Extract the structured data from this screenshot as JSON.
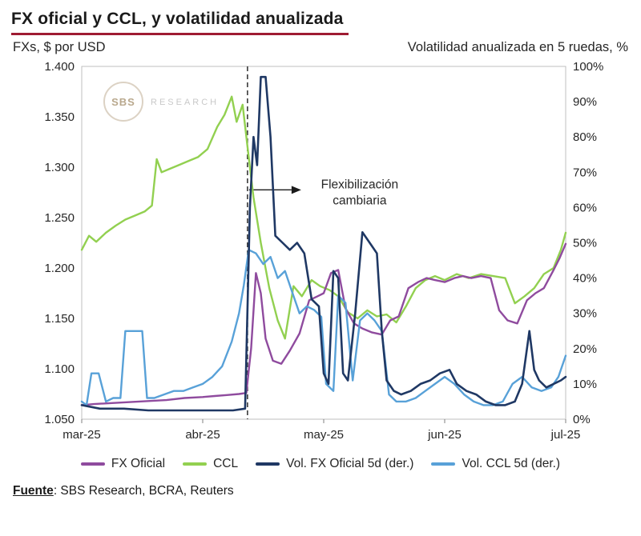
{
  "title": "FX oficial y CCL, y volatilidad anualizada",
  "subtitle_left": "FXs, $ por USD",
  "subtitle_right": "Volatilidad anualizada en 5 ruedas, %",
  "watermark": {
    "circle_text": "SBS",
    "side_text": "RESEARCH"
  },
  "annotation": {
    "line1": "Flexibilización",
    "line2": "cambiaria"
  },
  "footer": {
    "source_label": "Fuente",
    "source_rest": ": SBS Research, BCRA, Reuters"
  },
  "colors": {
    "title_rule": "#9E1B32",
    "plot_border": "#BFBFBF",
    "axis_text": "#262626",
    "event_line": "#3a3a3a"
  },
  "chart_data": {
    "type": "line",
    "title": "FX oficial y CCL, y volatilidad anualizada",
    "x_axis": {
      "unit": "months since mar-25",
      "range": [
        0,
        4
      ],
      "tick_positions": [
        0,
        1,
        2,
        3,
        4
      ],
      "tick_labels": [
        "mar-25",
        "abr-25",
        "may-25",
        "jun-25",
        "jul-25"
      ]
    },
    "y_left": {
      "label": "FXs, $ por USD",
      "range": [
        1.05,
        1.4
      ],
      "ticks": [
        "1.050",
        "1.100",
        "1.150",
        "1.200",
        "1.250",
        "1.300",
        "1.350",
        "1.400"
      ]
    },
    "y_right": {
      "label": "Volatilidad anualizada en 5 ruedas, %",
      "range": [
        0,
        100
      ],
      "ticks": [
        "0%",
        "10%",
        "20%",
        "30%",
        "40%",
        "50%",
        "60%",
        "70%",
        "80%",
        "90%",
        "100%"
      ]
    },
    "event_line": {
      "x": 1.37,
      "style": "dashed",
      "label": "Flexibilización cambiaria",
      "annotation_y_right_pct": 65
    },
    "legend_position": "bottom",
    "grid": false,
    "series": [
      {
        "name": "FX Oficial",
        "axis": "left",
        "color": "#8F4B9E",
        "width": 2.4,
        "x": [
          0,
          0.1,
          0.25,
          0.4,
          0.55,
          0.7,
          0.85,
          1.0,
          1.1,
          1.2,
          1.3,
          1.36,
          1.4,
          1.44,
          1.48,
          1.52,
          1.58,
          1.65,
          1.72,
          1.8,
          1.88,
          1.95,
          2.0,
          2.06,
          2.12,
          2.18,
          2.25,
          2.32,
          2.4,
          2.48,
          2.55,
          2.62,
          2.7,
          2.78,
          2.85,
          2.92,
          3.0,
          3.08,
          3.15,
          3.22,
          3.3,
          3.38,
          3.45,
          3.52,
          3.6,
          3.68,
          3.75,
          3.82,
          3.9,
          3.95,
          4.0
        ],
        "y": [
          1.064,
          1.065,
          1.066,
          1.067,
          1.068,
          1.069,
          1.071,
          1.072,
          1.073,
          1.074,
          1.075,
          1.076,
          1.12,
          1.195,
          1.175,
          1.13,
          1.108,
          1.105,
          1.118,
          1.135,
          1.168,
          1.172,
          1.175,
          1.195,
          1.198,
          1.16,
          1.145,
          1.14,
          1.136,
          1.134,
          1.148,
          1.152,
          1.18,
          1.186,
          1.19,
          1.188,
          1.186,
          1.19,
          1.192,
          1.19,
          1.192,
          1.19,
          1.158,
          1.148,
          1.145,
          1.168,
          1.175,
          1.18,
          1.198,
          1.21,
          1.224
        ]
      },
      {
        "name": "CCL",
        "axis": "left",
        "color": "#92D050",
        "width": 2.4,
        "x": [
          0,
          0.06,
          0.12,
          0.2,
          0.28,
          0.36,
          0.44,
          0.52,
          0.58,
          0.62,
          0.66,
          0.72,
          0.8,
          0.88,
          0.96,
          1.04,
          1.12,
          1.18,
          1.24,
          1.28,
          1.33,
          1.38,
          1.42,
          1.48,
          1.55,
          1.62,
          1.68,
          1.75,
          1.82,
          1.9,
          1.97,
          2.05,
          2.12,
          2.2,
          2.28,
          2.36,
          2.44,
          2.52,
          2.6,
          2.68,
          2.76,
          2.84,
          2.92,
          3.0,
          3.1,
          3.2,
          3.3,
          3.4,
          3.5,
          3.58,
          3.66,
          3.74,
          3.82,
          3.9,
          3.96,
          4.0
        ],
        "y": [
          1.218,
          1.232,
          1.226,
          1.235,
          1.242,
          1.248,
          1.252,
          1.256,
          1.262,
          1.308,
          1.295,
          1.298,
          1.302,
          1.306,
          1.31,
          1.318,
          1.34,
          1.352,
          1.37,
          1.345,
          1.362,
          1.31,
          1.27,
          1.225,
          1.18,
          1.148,
          1.13,
          1.182,
          1.172,
          1.188,
          1.182,
          1.178,
          1.172,
          1.156,
          1.15,
          1.158,
          1.152,
          1.154,
          1.146,
          1.162,
          1.18,
          1.188,
          1.192,
          1.188,
          1.194,
          1.19,
          1.194,
          1.192,
          1.19,
          1.165,
          1.172,
          1.18,
          1.194,
          1.2,
          1.218,
          1.235
        ]
      },
      {
        "name": "Vol. FX Oficial 5d (der.)",
        "axis": "right",
        "color": "#1F3864",
        "width": 2.6,
        "x": [
          0,
          0.15,
          0.35,
          0.55,
          0.75,
          0.95,
          1.1,
          1.25,
          1.35,
          1.39,
          1.42,
          1.45,
          1.48,
          1.52,
          1.56,
          1.6,
          1.66,
          1.72,
          1.78,
          1.84,
          1.9,
          1.96,
          2.0,
          2.04,
          2.08,
          2.12,
          2.16,
          2.2,
          2.26,
          2.32,
          2.36,
          2.4,
          2.44,
          2.48,
          2.52,
          2.58,
          2.64,
          2.72,
          2.8,
          2.88,
          2.96,
          3.04,
          3.1,
          3.18,
          3.26,
          3.34,
          3.42,
          3.5,
          3.58,
          3.64,
          3.7,
          3.74,
          3.78,
          3.84,
          3.9,
          3.96,
          4.0
        ],
        "y": [
          4,
          3,
          3,
          2.5,
          2.5,
          2.5,
          2.5,
          2.5,
          3,
          60,
          80,
          72,
          97,
          97,
          80,
          52,
          50,
          48,
          50,
          47,
          34,
          32,
          13,
          10,
          42,
          40,
          13,
          11,
          30,
          53,
          51,
          49,
          47,
          25,
          11,
          8,
          7,
          8,
          10,
          11,
          13,
          14,
          10,
          8,
          7,
          5,
          4,
          4,
          5,
          10,
          25,
          14,
          11,
          9,
          10,
          11,
          12
        ]
      },
      {
        "name": "Vol. CCL 5d (der.)",
        "axis": "right",
        "color": "#58A1D8",
        "width": 2.4,
        "x": [
          0,
          0.04,
          0.08,
          0.14,
          0.2,
          0.26,
          0.32,
          0.36,
          0.42,
          0.5,
          0.54,
          0.6,
          0.68,
          0.76,
          0.84,
          0.92,
          1.0,
          1.08,
          1.16,
          1.24,
          1.3,
          1.34,
          1.38,
          1.44,
          1.5,
          1.56,
          1.62,
          1.68,
          1.74,
          1.8,
          1.86,
          1.92,
          1.98,
          2.02,
          2.08,
          2.12,
          2.18,
          2.24,
          2.3,
          2.36,
          2.42,
          2.48,
          2.54,
          2.6,
          2.68,
          2.76,
          2.84,
          2.92,
          3.0,
          3.08,
          3.16,
          3.24,
          3.32,
          3.4,
          3.48,
          3.56,
          3.64,
          3.72,
          3.8,
          3.88,
          3.94,
          4.0
        ],
        "y": [
          5,
          4,
          13,
          13,
          5,
          6,
          6,
          25,
          25,
          25,
          6,
          6,
          7,
          8,
          8,
          9,
          10,
          12,
          15,
          22,
          30,
          38,
          48,
          47,
          44,
          46,
          40,
          42,
          36,
          30,
          32,
          31,
          29,
          10,
          8,
          35,
          33,
          11,
          28,
          30,
          28,
          25,
          7,
          5,
          5,
          6,
          8,
          10,
          12,
          10,
          7,
          5,
          4,
          4,
          5,
          10,
          12,
          9,
          8,
          9,
          12,
          18
        ]
      }
    ]
  }
}
